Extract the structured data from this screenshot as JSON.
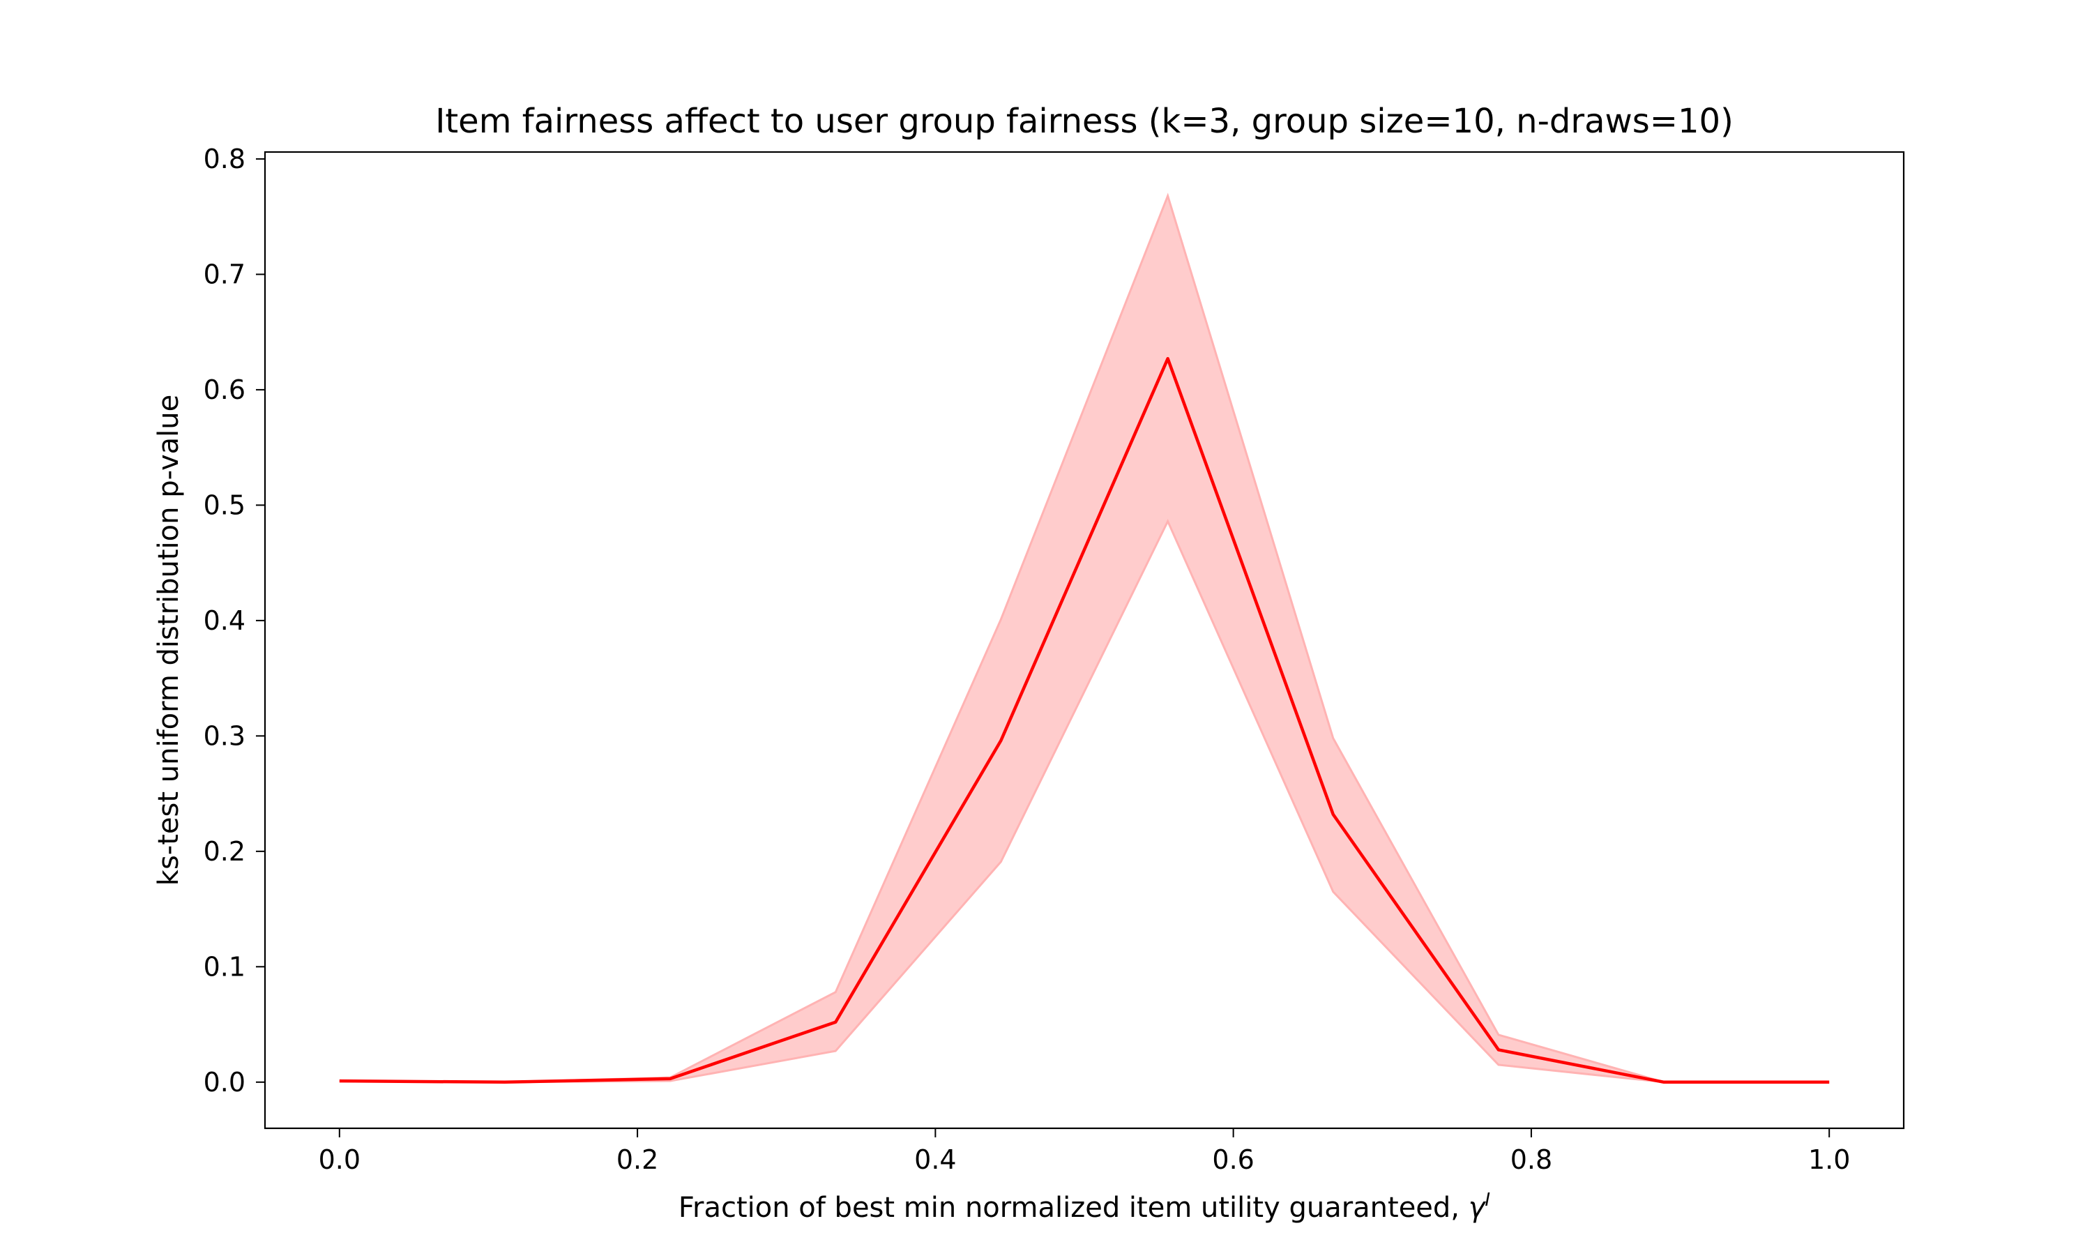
{
  "chart_data": {
    "type": "line",
    "title": "Item fairness affect to user group fairness (k=3, group size=10, n-draws=10)",
    "xlabel": "Fraction of best min normalized item utility guaranteed, ",
    "xlabel_symbol": "γ",
    "xlabel_symbol_superscript": "I",
    "ylabel": "ks-test uniform distribution p-value",
    "xlim": [
      -0.05,
      1.05
    ],
    "ylim": [
      -0.04,
      0.806
    ],
    "x_ticks": [
      0.0,
      0.2,
      0.4,
      0.6,
      0.8,
      1.0
    ],
    "x_tick_labels": [
      "0.0",
      "0.2",
      "0.4",
      "0.6",
      "0.8",
      "1.0"
    ],
    "y_ticks": [
      0.0,
      0.1,
      0.2,
      0.3,
      0.4,
      0.5,
      0.6,
      0.7,
      0.8
    ],
    "y_tick_labels": [
      "0.0",
      "0.1",
      "0.2",
      "0.3",
      "0.4",
      "0.5",
      "0.6",
      "0.7",
      "0.8"
    ],
    "grid": false,
    "series": [
      {
        "x": [
          0.0,
          0.111,
          0.222,
          0.333,
          0.444,
          0.556,
          0.667,
          0.778,
          0.889,
          1.0
        ],
        "values": [
          0.001,
          0.0,
          0.003,
          0.052,
          0.296,
          0.627,
          0.232,
          0.028,
          0.0,
          0.0
        ],
        "lower": [
          0.001,
          0.0,
          0.001,
          0.027,
          0.191,
          0.486,
          0.165,
          0.015,
          0.0,
          0.0
        ],
        "upper": [
          0.001,
          0.0,
          0.004,
          0.078,
          0.401,
          0.768,
          0.298,
          0.041,
          0.0,
          0.0
        ],
        "line_color": "#ff0000",
        "band_color": "#ffcccc",
        "band_edge_color": "#ffb3b3"
      }
    ]
  }
}
